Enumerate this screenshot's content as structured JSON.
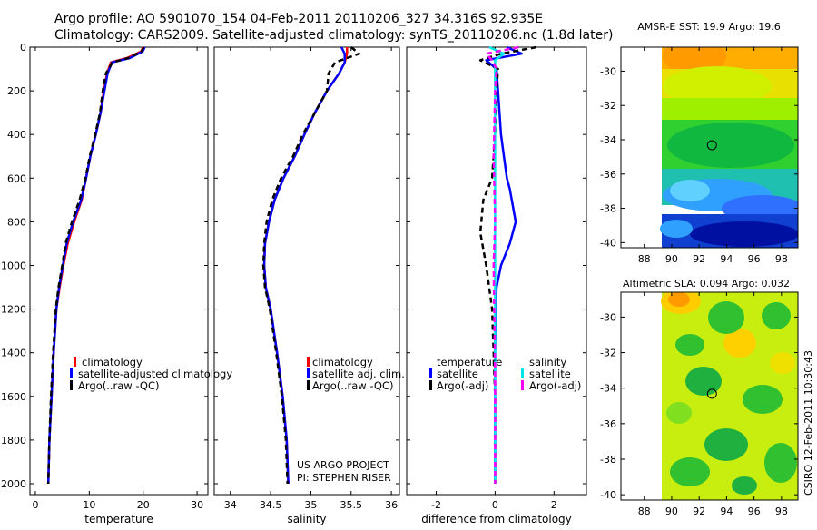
{
  "header": {
    "title_line1": "Argo profile: AO 5901070_154 04-Feb-2011 20110206_327 34.316S 92.935E",
    "title_line2": "Climatology: CARS2009. Satellite-adjusted climatology: synTS_20110206.nc (1.8d later)"
  },
  "colors": {
    "climatology": "#ff0000",
    "satellite": "#0000ff",
    "argo": "#000000",
    "salinity_satellite": "#00e5e5",
    "salinity_argo": "#ff00ff"
  },
  "chart_data": [
    {
      "type": "line",
      "id": "temperature",
      "xlabel": "temperature",
      "ylabel": "",
      "xlim": [
        -1,
        32
      ],
      "ylim": [
        0,
        2050
      ],
      "yreversed": true,
      "xticks": [
        0,
        10,
        20,
        30
      ],
      "yticks": [
        0,
        200,
        400,
        600,
        800,
        1000,
        1200,
        1400,
        1600,
        1800,
        2000
      ],
      "legend": [
        "climatology",
        "satellite-adjusted climatology",
        "Argo(..raw -QC)"
      ],
      "series": [
        {
          "name": "climatology",
          "color": "#ff0000",
          "dash": false,
          "width": 2.5,
          "x": [
            20.0,
            19.6,
            17.0,
            14.0,
            13.3,
            12.7,
            12.1,
            11.2,
            10.2,
            9.4,
            8.6,
            7.2,
            6.0,
            5.2,
            4.5,
            3.9,
            3.4,
            3.0,
            2.6,
            2.4
          ],
          "y": [
            0,
            20,
            50,
            70,
            120,
            200,
            300,
            400,
            500,
            600,
            700,
            800,
            900,
            1000,
            1100,
            1200,
            1400,
            1600,
            1800,
            2000
          ]
        },
        {
          "name": "satellite-adjusted climatology",
          "color": "#0000ff",
          "dash": false,
          "width": 2.5,
          "x": [
            20.3,
            19.9,
            17.5,
            14.2,
            13.4,
            12.8,
            12.1,
            11.2,
            10.2,
            9.4,
            8.5,
            7.0,
            5.8,
            5.1,
            4.4,
            3.9,
            3.4,
            3.0,
            2.6,
            2.4
          ],
          "y": [
            0,
            20,
            50,
            70,
            120,
            200,
            300,
            400,
            500,
            600,
            700,
            800,
            900,
            1000,
            1100,
            1200,
            1400,
            1600,
            1800,
            2000
          ]
        },
        {
          "name": "Argo(..raw -QC)",
          "color": "#000000",
          "dash": true,
          "width": 2.5,
          "x": [
            20.1,
            19.7,
            17.2,
            14.3,
            13.1,
            12.5,
            12.0,
            11.1,
            10.1,
            9.3,
            8.2,
            6.8,
            5.6,
            5.0,
            4.3,
            3.8,
            3.3,
            2.9,
            2.6,
            2.4
          ],
          "y": [
            0,
            20,
            50,
            70,
            120,
            200,
            300,
            400,
            500,
            600,
            700,
            800,
            900,
            1000,
            1100,
            1200,
            1400,
            1600,
            1800,
            2000
          ]
        }
      ]
    },
    {
      "type": "line",
      "id": "salinity",
      "xlabel": "salinity",
      "ylabel": "",
      "xlim": [
        33.8,
        36.1
      ],
      "ylim": [
        0,
        2050
      ],
      "yreversed": true,
      "xticks": [
        34,
        34.5,
        35,
        35.5,
        36
      ],
      "yticks": [
        0,
        200,
        400,
        600,
        800,
        1000,
        1200,
        1400,
        1600,
        1800,
        2000
      ],
      "legend": [
        "climatology",
        "satellite adj. clim.",
        "Argo(..raw -QC)"
      ],
      "series": [
        {
          "name": "climatology",
          "color": "#ff0000",
          "dash": false,
          "width": 2.5,
          "x": [
            35.45,
            35.45,
            35.42,
            35.35,
            35.2,
            35.05,
            34.92,
            34.8,
            34.66,
            34.55,
            34.48,
            34.43,
            34.42,
            34.44,
            34.5,
            34.58,
            34.65,
            34.7,
            34.72
          ],
          "y": [
            0,
            30,
            70,
            120,
            200,
            300,
            400,
            500,
            600,
            700,
            800,
            900,
            1000,
            1100,
            1200,
            1400,
            1600,
            1800,
            2000
          ]
        },
        {
          "name": "satellite adj. clim.",
          "color": "#0000ff",
          "dash": false,
          "width": 2.5,
          "x": [
            35.38,
            35.42,
            35.42,
            35.35,
            35.2,
            35.05,
            34.92,
            34.8,
            34.66,
            34.55,
            34.48,
            34.43,
            34.42,
            34.44,
            34.5,
            34.58,
            34.65,
            34.7,
            34.72
          ],
          "y": [
            0,
            30,
            70,
            120,
            200,
            300,
            400,
            500,
            600,
            700,
            800,
            900,
            1000,
            1100,
            1200,
            1400,
            1600,
            1800,
            2000
          ]
        },
        {
          "name": "Argo(..raw -QC)",
          "color": "#000000",
          "dash": true,
          "width": 2.5,
          "x": [
            35.5,
            35.6,
            35.3,
            35.22,
            35.2,
            35.05,
            34.9,
            34.78,
            34.63,
            34.52,
            34.45,
            34.42,
            34.41,
            34.43,
            34.49,
            34.57,
            34.64,
            34.69,
            34.71
          ],
          "y": [
            0,
            30,
            70,
            120,
            200,
            300,
            400,
            500,
            600,
            700,
            800,
            900,
            1000,
            1100,
            1200,
            1400,
            1600,
            1800,
            2000
          ]
        }
      ]
    },
    {
      "type": "line",
      "id": "difference",
      "xlabel": "difference from climatology",
      "ylabel": "",
      "xlim": [
        -3,
        3.1
      ],
      "ylim": [
        0,
        2050
      ],
      "yreversed": true,
      "xticks": [
        -2,
        0,
        2
      ],
      "yticks": [
        0,
        200,
        400,
        600,
        800,
        1000,
        1200,
        1400,
        1600,
        1800,
        2000
      ],
      "legend_groups": [
        {
          "title": "temperature",
          "items": [
            "satellite",
            "Argo(-adj)"
          ]
        },
        {
          "title": "salinity",
          "items": [
            "satellite",
            "Argo(-adj)"
          ]
        }
      ],
      "series": [
        {
          "name": "temperature satellite",
          "color": "#0000ff",
          "dash": false,
          "width": 2.5,
          "x": [
            0.4,
            0.9,
            -0.3,
            0.05,
            0.1,
            0.2,
            0.3,
            0.4,
            0.5,
            0.7,
            0.5,
            0.2,
            0.05,
            0.02,
            0.0,
            0.0,
            0.0
          ],
          "y": [
            0,
            30,
            60,
            100,
            200,
            400,
            500,
            600,
            650,
            800,
            900,
            1000,
            1100,
            1200,
            1400,
            1700,
            2000
          ]
        },
        {
          "name": "temperature Argo(-adj)",
          "color": "#000000",
          "dash": true,
          "width": 2.5,
          "x": [
            1.4,
            0.2,
            -0.5,
            0.1,
            0.05,
            0.0,
            -0.1,
            -0.4,
            -0.5,
            -0.3,
            -0.1,
            0.0,
            0.0
          ],
          "y": [
            0,
            30,
            60,
            100,
            200,
            400,
            600,
            700,
            850,
            1000,
            1200,
            1600,
            2000
          ]
        },
        {
          "name": "salinity satellite",
          "color": "#00e5e5",
          "dash": false,
          "width": 2.5,
          "x": [
            -0.2,
            0.3,
            0.0,
            0.0,
            0.0,
            0.0,
            0.0,
            0.0,
            0.0
          ],
          "y": [
            0,
            30,
            60,
            100,
            200,
            500,
            1000,
            1500,
            2000
          ]
        },
        {
          "name": "salinity Argo(-adj)",
          "color": "#ff00ff",
          "dash": true,
          "width": 2.5,
          "x": [
            0.8,
            -0.3,
            -0.1,
            0.05,
            0.0,
            -0.05,
            0.0,
            -0.05,
            0.0,
            0.0
          ],
          "y": [
            0,
            30,
            60,
            100,
            200,
            500,
            800,
            1000,
            1500,
            2000
          ]
        }
      ]
    },
    {
      "type": "heatmap",
      "id": "sst_map",
      "title": "AMSR-E SST: 19.9 Argo: 19.6",
      "xlim": [
        86.3,
        99.2
      ],
      "ylim": [
        -40.3,
        -28.6
      ],
      "xticks": [
        88,
        90,
        92,
        94,
        96,
        98
      ],
      "yticks": [
        -30,
        -32,
        -34,
        -36,
        -38,
        -40
      ],
      "no_data_west_of": 90,
      "marker": {
        "lon": 92.935,
        "lat": -34.316
      }
    },
    {
      "type": "heatmap",
      "id": "sla_map",
      "title": "Altimetric SLA: 0.094 Argo: 0.032",
      "xlim": [
        86.3,
        99.2
      ],
      "ylim": [
        -40.3,
        -28.6
      ],
      "xticks": [
        88,
        90,
        92,
        94,
        96,
        98
      ],
      "yticks": [
        -30,
        -32,
        -34,
        -36,
        -38,
        -40
      ],
      "no_data_west_of": 90,
      "marker": {
        "lon": 92.935,
        "lat": -34.316
      }
    }
  ],
  "footer": {
    "project_line1": "US ARGO PROJECT",
    "project_line2": "PI: STEPHEN RISER",
    "stamp": "CSIRO 12-Feb-2011 10:30:43"
  }
}
